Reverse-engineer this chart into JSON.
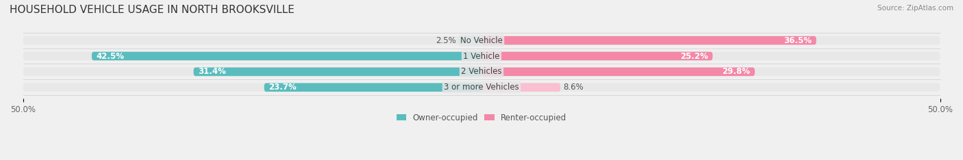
{
  "title": "HOUSEHOLD VEHICLE USAGE IN NORTH BROOKSVILLE",
  "source": "Source: ZipAtlas.com",
  "categories": [
    "No Vehicle",
    "1 Vehicle",
    "2 Vehicles",
    "3 or more Vehicles"
  ],
  "owner_values": [
    2.5,
    42.5,
    31.4,
    23.7
  ],
  "renter_values": [
    36.5,
    25.2,
    29.8,
    8.6
  ],
  "owner_color": "#5bbcbe",
  "renter_color": "#f388a8",
  "owner_color_light": "#a8dfe0",
  "renter_color_light": "#f9c0d1",
  "axis_max": 50.0,
  "bar_height": 0.55,
  "background_color": "#f0f0f0",
  "bar_bg_color": "#e8e8e8",
  "title_fontsize": 11,
  "label_fontsize": 8.5,
  "tick_fontsize": 8.5
}
